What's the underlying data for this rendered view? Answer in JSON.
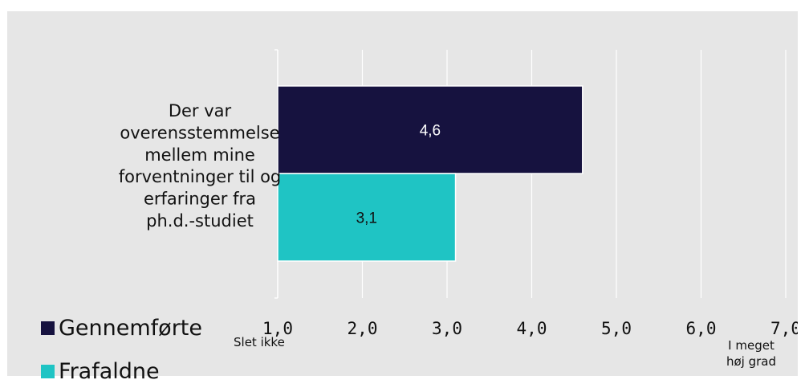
{
  "chart_data": {
    "type": "bar",
    "orientation": "horizontal",
    "categories": [
      "Der var overensstemmelse mellem mine forventninger til og erfaringer fra ph.d.-studiet"
    ],
    "category_lines": [
      "Der var",
      "overensstemmelse",
      "mellem mine",
      "forventninger til og",
      "erfaringer fra",
      "ph.d.-studiet"
    ],
    "series": [
      {
        "name": "Gennemførte",
        "color": "#16123f",
        "values": [
          4.6
        ],
        "labels": [
          "4,6"
        ]
      },
      {
        "name": "Frafaldne",
        "color": "#1fc4c4",
        "values": [
          3.1
        ],
        "labels": [
          "3,1"
        ]
      }
    ],
    "xlim": [
      1.0,
      7.0
    ],
    "ticks": [
      1.0,
      2.0,
      3.0,
      4.0,
      5.0,
      6.0,
      7.0
    ],
    "tick_labels": [
      "1,0",
      "2,0",
      "3,0",
      "4,0",
      "5,0",
      "6,0",
      "7,0"
    ],
    "x_min_label": "Slet ikke",
    "x_max_label": [
      "I meget",
      "høj grad"
    ],
    "grid": true,
    "legend_position": "bottom-left"
  }
}
